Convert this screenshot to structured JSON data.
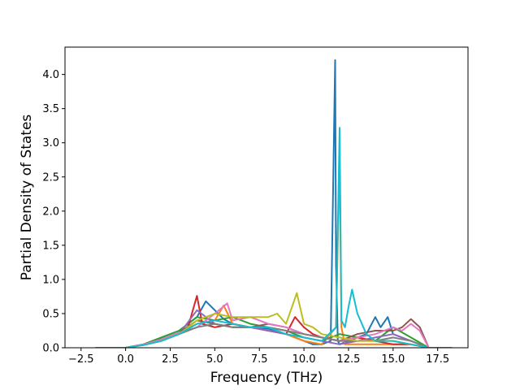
{
  "chart_data": {
    "type": "line",
    "title": "",
    "xlabel": "Frequency (THz)",
    "ylabel": "Partial Density of States",
    "xlim": [
      -3.4,
      19.2
    ],
    "ylim": [
      0,
      4.4
    ],
    "xticks": [
      -2.5,
      0.0,
      2.5,
      5.0,
      7.5,
      10.0,
      12.5,
      15.0,
      17.5
    ],
    "xtick_labels": [
      "−2.5",
      "0.0",
      "2.5",
      "5.0",
      "7.5",
      "10.0",
      "12.5",
      "15.0",
      "17.5"
    ],
    "yticks": [
      0.0,
      0.5,
      1.0,
      1.5,
      2.0,
      2.5,
      3.0,
      3.5,
      4.0
    ],
    "ytick_labels": [
      "0.0",
      "0.5",
      "1.0",
      "1.5",
      "2.0",
      "2.5",
      "3.0",
      "3.5",
      "4.0"
    ],
    "grid": false,
    "legend": "none",
    "series": [
      {
        "color": "#1f77b4",
        "x": [
          -1.7,
          0.0,
          1.0,
          2.0,
          3.0,
          4.0,
          4.5,
          5.0,
          5.5,
          6.0,
          7.0,
          8.0,
          9.0,
          10.0,
          10.5,
          11.0,
          11.5,
          11.75,
          11.8,
          11.9,
          12.0,
          12.5,
          13.0,
          13.5,
          14.0,
          14.3,
          14.7,
          15.0,
          15.5,
          16.0,
          16.5,
          17.0,
          18.3
        ],
        "y": [
          0.0,
          0.0,
          0.05,
          0.15,
          0.25,
          0.45,
          0.68,
          0.55,
          0.42,
          0.35,
          0.3,
          0.28,
          0.2,
          0.1,
          0.05,
          0.05,
          0.1,
          4.21,
          1.2,
          0.1,
          0.05,
          0.1,
          0.15,
          0.2,
          0.45,
          0.3,
          0.45,
          0.2,
          0.15,
          0.1,
          0.05,
          0.0,
          0.0
        ]
      },
      {
        "color": "#ff7f0e",
        "x": [
          -1.7,
          0.0,
          1.0,
          2.0,
          3.0,
          4.0,
          5.0,
          5.5,
          6.0,
          7.0,
          8.0,
          9.0,
          10.0,
          11.0,
          11.8,
          12.0,
          12.1,
          12.3,
          13.0,
          14.0,
          15.0,
          16.0,
          17.0,
          18.3
        ],
        "y": [
          0.0,
          0.0,
          0.04,
          0.12,
          0.22,
          0.35,
          0.4,
          0.62,
          0.35,
          0.3,
          0.25,
          0.2,
          0.1,
          0.05,
          0.3,
          2.83,
          0.3,
          0.05,
          0.05,
          0.05,
          0.05,
          0.05,
          0.0,
          0.0
        ]
      },
      {
        "color": "#2ca02c",
        "x": [
          -1.7,
          0.0,
          1.0,
          2.0,
          3.0,
          4.0,
          5.0,
          6.0,
          7.0,
          8.0,
          9.0,
          10.0,
          11.0,
          12.0,
          13.0,
          14.0,
          15.0,
          16.0,
          17.0,
          18.3
        ],
        "y": [
          0.0,
          0.0,
          0.05,
          0.15,
          0.25,
          0.45,
          0.4,
          0.45,
          0.35,
          0.3,
          0.25,
          0.15,
          0.1,
          0.2,
          0.15,
          0.1,
          0.3,
          0.15,
          0.0,
          0.0
        ]
      },
      {
        "color": "#d62728",
        "x": [
          -1.7,
          0.0,
          1.0,
          2.0,
          3.0,
          3.5,
          4.0,
          4.3,
          5.0,
          6.0,
          7.0,
          8.0,
          9.0,
          9.5,
          10.0,
          10.5,
          11.0,
          12.0,
          13.0,
          14.0,
          15.0,
          16.0,
          17.0,
          18.3
        ],
        "y": [
          0.0,
          0.0,
          0.05,
          0.12,
          0.2,
          0.3,
          0.76,
          0.35,
          0.3,
          0.35,
          0.3,
          0.25,
          0.2,
          0.45,
          0.3,
          0.2,
          0.15,
          0.1,
          0.15,
          0.1,
          0.05,
          0.05,
          0.0,
          0.0
        ]
      },
      {
        "color": "#9467bd",
        "x": [
          -1.7,
          0.0,
          1.0,
          2.0,
          3.0,
          4.0,
          5.0,
          6.0,
          7.0,
          8.0,
          9.0,
          10.0,
          11.0,
          12.0,
          13.0,
          14.0,
          15.0,
          16.0,
          17.0,
          18.3
        ],
        "y": [
          0.0,
          0.0,
          0.04,
          0.1,
          0.2,
          0.55,
          0.35,
          0.3,
          0.3,
          0.25,
          0.2,
          0.15,
          0.1,
          0.05,
          0.1,
          0.15,
          0.2,
          0.1,
          0.0,
          0.0
        ]
      },
      {
        "color": "#8c564b",
        "x": [
          -1.7,
          0.0,
          1.0,
          2.0,
          3.0,
          4.0,
          5.0,
          6.0,
          7.0,
          8.0,
          9.0,
          10.0,
          11.0,
          12.0,
          13.0,
          14.0,
          15.0,
          15.5,
          16.0,
          16.5,
          17.0,
          18.3
        ],
        "y": [
          0.0,
          0.0,
          0.04,
          0.12,
          0.22,
          0.4,
          0.35,
          0.3,
          0.3,
          0.35,
          0.3,
          0.2,
          0.15,
          0.1,
          0.2,
          0.25,
          0.25,
          0.3,
          0.42,
          0.3,
          0.0,
          0.0
        ]
      },
      {
        "color": "#e377c2",
        "x": [
          -1.7,
          0.0,
          1.0,
          2.0,
          3.0,
          4.0,
          5.0,
          5.7,
          6.0,
          7.0,
          8.0,
          9.0,
          10.0,
          11.0,
          12.0,
          13.0,
          14.0,
          15.0,
          15.5,
          16.0,
          16.5,
          17.0,
          18.3
        ],
        "y": [
          0.0,
          0.0,
          0.05,
          0.12,
          0.22,
          0.3,
          0.5,
          0.65,
          0.4,
          0.45,
          0.35,
          0.3,
          0.2,
          0.15,
          0.1,
          0.15,
          0.2,
          0.3,
          0.25,
          0.35,
          0.25,
          0.0,
          0.0
        ]
      },
      {
        "color": "#7f7f7f",
        "x": [
          -1.7,
          0.0,
          1.0,
          2.0,
          3.0,
          4.0,
          5.0,
          6.0,
          7.0,
          8.0,
          9.0,
          10.0,
          11.0,
          12.0,
          13.0,
          14.0,
          15.0,
          16.0,
          17.0,
          18.3
        ],
        "y": [
          0.0,
          0.0,
          0.04,
          0.1,
          0.2,
          0.3,
          0.35,
          0.3,
          0.3,
          0.3,
          0.25,
          0.2,
          0.15,
          0.1,
          0.1,
          0.1,
          0.15,
          0.1,
          0.0,
          0.0
        ]
      },
      {
        "color": "#bcbd22",
        "x": [
          -1.7,
          0.0,
          1.0,
          2.0,
          3.0,
          4.0,
          5.0,
          6.0,
          7.0,
          8.0,
          8.5,
          9.0,
          9.6,
          10.0,
          10.5,
          11.0,
          12.0,
          13.0,
          14.0,
          15.0,
          16.0,
          17.0,
          18.3
        ],
        "y": [
          0.0,
          0.0,
          0.04,
          0.1,
          0.2,
          0.4,
          0.5,
          0.45,
          0.45,
          0.45,
          0.5,
          0.35,
          0.8,
          0.35,
          0.3,
          0.2,
          0.15,
          0.1,
          0.1,
          0.1,
          0.05,
          0.0,
          0.0
        ]
      },
      {
        "color": "#17becf",
        "x": [
          -1.7,
          0.0,
          1.0,
          2.0,
          3.0,
          4.0,
          5.0,
          6.0,
          7.0,
          8.0,
          9.0,
          10.0,
          11.0,
          11.8,
          12.0,
          12.1,
          12.3,
          12.5,
          12.7,
          13.0,
          13.5,
          14.0,
          15.0,
          16.0,
          17.0,
          18.3
        ],
        "y": [
          0.0,
          0.0,
          0.04,
          0.1,
          0.2,
          0.35,
          0.4,
          0.35,
          0.3,
          0.3,
          0.2,
          0.15,
          0.1,
          0.3,
          3.22,
          0.4,
          0.3,
          0.6,
          0.85,
          0.5,
          0.2,
          0.1,
          0.1,
          0.05,
          0.0,
          0.0
        ]
      }
    ]
  }
}
